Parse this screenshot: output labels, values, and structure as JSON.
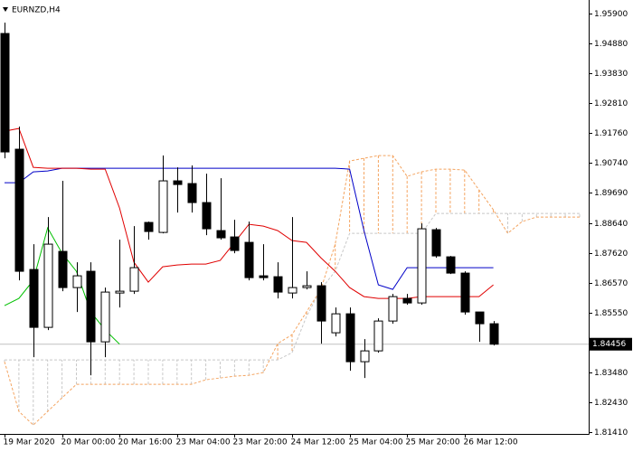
{
  "chart_data": {
    "type": "candlestick",
    "title": "EURNZD,H4",
    "categories": [
      "19 Mar 2020",
      null,
      null,
      null,
      "20 Mar 00:00",
      null,
      null,
      null,
      "20 Mar 16:00",
      null,
      null,
      null,
      "23 Mar 04:00",
      null,
      null,
      null,
      "23 Mar 20:00",
      null,
      null,
      null,
      "24 Mar 12:00",
      null,
      null,
      null,
      "25 Mar 04:00",
      null,
      null,
      null,
      "25 Mar 20:00",
      null,
      null,
      null,
      "26 Mar 12:00",
      null,
      null,
      null,
      null,
      null,
      null,
      null,
      null
    ],
    "open": [
      1.95211,
      1.91205,
      1.87042,
      1.85039,
      1.87668,
      1.86416,
      1.8698,
      1.84538,
      1.86228,
      1.86291,
      1.8867,
      1.88325,
      1.9011,
      1.90016,
      1.89358,
      1.88388,
      1.88169,
      1.87981,
      1.86823,
      1.86792,
      1.86228,
      1.86416,
      1.86479,
      1.84851,
      1.85508,
      1.8385,
      1.84225,
      1.85258,
      1.86041,
      1.85884,
      1.88419,
      1.8748,
      1.86917,
      1.85571,
      1.85164,
      null,
      null,
      null,
      null,
      null,
      null
    ],
    "high": [
      1.95587,
      1.91988,
      1.87919,
      1.88858,
      1.9011,
      1.87293,
      1.87293,
      1.86416,
      1.88075,
      1.88545,
      1.88701,
      1.90986,
      1.90579,
      1.90642,
      1.9036,
      1.90203,
      1.88764,
      1.88701,
      1.87919,
      1.87293,
      1.88858,
      1.8698,
      1.86604,
      1.85728,
      1.85728,
      1.84632,
      1.85352,
      1.86197,
      1.86197,
      1.88638,
      1.88482,
      1.87512,
      1.8698,
      1.85571,
      1.85258,
      null,
      null,
      null,
      null,
      null,
      null
    ],
    "low": [
      1.90892,
      1.86667,
      1.84006,
      1.84945,
      1.86291,
      1.85571,
      1.8338,
      1.84006,
      1.85728,
      1.86197,
      1.88075,
      1.88294,
      1.89014,
      1.89014,
      1.88232,
      1.88075,
      1.87606,
      1.86667,
      1.86667,
      1.86041,
      1.86041,
      1.86353,
      1.84476,
      1.84726,
      1.83537,
      1.83286,
      1.84163,
      1.85164,
      1.85821,
      1.85821,
      1.87449,
      1.86886,
      1.85477,
      1.84538,
      1.84413,
      null,
      null,
      null,
      null,
      null,
      null
    ],
    "close": [
      1.91111,
      1.8698,
      1.85039,
      1.87919,
      1.86416,
      1.86823,
      1.84538,
      1.8626,
      1.86291,
      1.87105,
      1.88357,
      1.9011,
      1.89984,
      1.89358,
      1.88451,
      1.88138,
      1.877,
      1.8676,
      1.8676,
      1.8626,
      1.86416,
      1.86479,
      1.85258,
      1.85508,
      1.8385,
      1.84225,
      1.85258,
      1.86103,
      1.85884,
      1.88451,
      1.87512,
      1.86917,
      1.85571,
      1.85164,
      1.84456,
      null,
      null,
      null,
      null,
      null,
      null
    ],
    "bull_color": "#ffffff",
    "bear_color": "#000000",
    "tenkan": {
      "color": "#e00000",
      "values": [
        1.91831,
        1.91925,
        1.90579,
        1.90548,
        1.90548,
        1.90548,
        1.90516,
        1.90516,
        1.8917,
        1.87293,
        1.86604,
        1.87136,
        1.87199,
        1.8723,
        1.8723,
        1.87355,
        1.87981,
        1.88607,
        1.88545,
        1.88388,
        1.88044,
        1.87981,
        1.87449,
        1.8698,
        1.86416,
        1.86103,
        1.86041,
        1.86041,
        1.86041,
        1.86103,
        1.86103,
        1.86103,
        1.86103,
        1.86103,
        1.8651,
        null,
        null,
        null,
        null,
        null,
        null
      ]
    },
    "kijun": {
      "color": "#0000c8",
      "values": [
        1.90047,
        1.90047,
        1.90422,
        1.90454,
        1.90548,
        1.90548,
        1.90548,
        1.90548,
        1.90548,
        1.90548,
        1.90548,
        1.90548,
        1.90548,
        1.90548,
        1.90548,
        1.90548,
        1.90548,
        1.90548,
        1.90548,
        1.90548,
        1.90548,
        1.90548,
        1.90548,
        1.90548,
        1.90516,
        1.88388,
        1.8651,
        1.86353,
        1.87105,
        1.87105,
        1.87105,
        1.87105,
        1.87105,
        1.87105,
        1.87105,
        null,
        null,
        null,
        null,
        null,
        null
      ]
    },
    "chikou": {
      "color": "#00c000",
      "values": [
        1.8579,
        1.86041,
        1.86667,
        1.88482,
        1.87606,
        1.8698,
        1.85571,
        1.84945,
        1.84456,
        null,
        null,
        null,
        null,
        null,
        null,
        null,
        null,
        null,
        null,
        null,
        null,
        null,
        null,
        null,
        null,
        null,
        null,
        null,
        null,
        null,
        null,
        null,
        null,
        null,
        null,
        null,
        null,
        null,
        null,
        null,
        null
      ]
    },
    "span_a": {
      "color": "#f4a460",
      "values": [
        1.83849,
        1.82128,
        1.81658,
        1.82128,
        1.82597,
        1.83067,
        1.83067,
        1.83067,
        1.83067,
        1.83067,
        1.83067,
        1.83067,
        1.83067,
        1.83067,
        1.83223,
        1.83286,
        1.83349,
        1.8338,
        1.83474,
        1.84476,
        1.84788,
        1.85571,
        1.86353,
        1.87919,
        1.90798,
        1.90892,
        1.90986,
        1.90986,
        1.90266,
        1.90422,
        1.90516,
        1.90516,
        1.90485,
        1.89796,
        1.89108,
        1.88294,
        1.88701,
        1.88858,
        1.88858,
        1.88858,
        1.88858
      ]
    },
    "span_b": {
      "color": "#c8c8c8",
      "values": [
        1.83912,
        1.83912,
        1.83912,
        1.83912,
        1.83912,
        1.83912,
        1.83912,
        1.83912,
        1.83912,
        1.83912,
        1.83912,
        1.83912,
        1.83912,
        1.83912,
        1.83912,
        1.83912,
        1.83912,
        1.83912,
        1.83912,
        1.83912,
        1.84162,
        1.85414,
        1.86353,
        1.8698,
        1.88294,
        1.88294,
        1.88294,
        1.88294,
        1.88294,
        1.88294,
        1.88983,
        1.88983,
        1.88983,
        1.88983,
        1.88983,
        1.88983,
        1.88983,
        1.88983,
        1.88983,
        1.88983,
        1.88983
      ]
    },
    "current_price": 1.84456,
    "ylim": [
      1.8135,
      1.9637
    ],
    "yticks": [
      {
        "value": 1.959,
        "label": "1.95900"
      },
      {
        "value": 1.9488,
        "label": "1.94880"
      },
      {
        "value": 1.9383,
        "label": "1.93830"
      },
      {
        "value": 1.9281,
        "label": "1.92810"
      },
      {
        "value": 1.9176,
        "label": "1.91760"
      },
      {
        "value": 1.9074,
        "label": "1.90740"
      },
      {
        "value": 1.8969,
        "label": "1.89690"
      },
      {
        "value": 1.8864,
        "label": "1.88640"
      },
      {
        "value": 1.8762,
        "label": "1.87620"
      },
      {
        "value": 1.8657,
        "label": "1.86570"
      },
      {
        "value": 1.8555,
        "label": "1.85550"
      },
      {
        "value": 1.8348,
        "label": "1.83480"
      },
      {
        "value": 1.8243,
        "label": "1.82430"
      },
      {
        "value": 1.8141,
        "label": "1.81410"
      }
    ]
  }
}
